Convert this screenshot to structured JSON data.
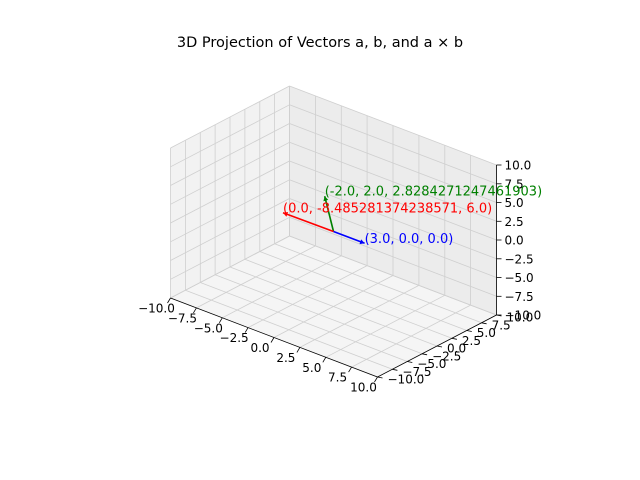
{
  "chart_data": {
    "type": "scatter",
    "title": "3D Projection of Vectors a, b, and a × b",
    "xlim": [
      -10,
      10
    ],
    "ylim": [
      -10,
      10
    ],
    "zlim": [
      -10,
      10
    ],
    "x_ticks": [
      "−10.0",
      "−7.5",
      "−5.0",
      "−2.5",
      "0.0",
      "2.5",
      "5.0",
      "7.5",
      "10.0"
    ],
    "y_ticks": [
      "−10.0",
      "−7.5",
      "−5.0",
      "−2.5",
      "0.0",
      "2.5",
      "5.0",
      "7.5",
      "10.0"
    ],
    "z_ticks": [
      "−10.0",
      "−7.5",
      "−5.0",
      "−2.5",
      "0.0",
      "2.5",
      "5.0",
      "7.5",
      "10.0"
    ],
    "grid": true,
    "series": [
      {
        "vector": [
          3.0,
          0.0,
          0.0
        ],
        "label": "(3.0, 0.0, 0.0)",
        "color": "#0000ff"
      },
      {
        "vector": [
          -2.0,
          2.0,
          2.8284271247461903
        ],
        "label": "(-2.0, 2.0, 2.8284271247461903)",
        "color": "#008000"
      },
      {
        "vector": [
          0.0,
          -8.485281374238571,
          6.0
        ],
        "label": "(0.0, -8.485281374238571, 6.0)",
        "color": "#ff0000"
      }
    ]
  }
}
